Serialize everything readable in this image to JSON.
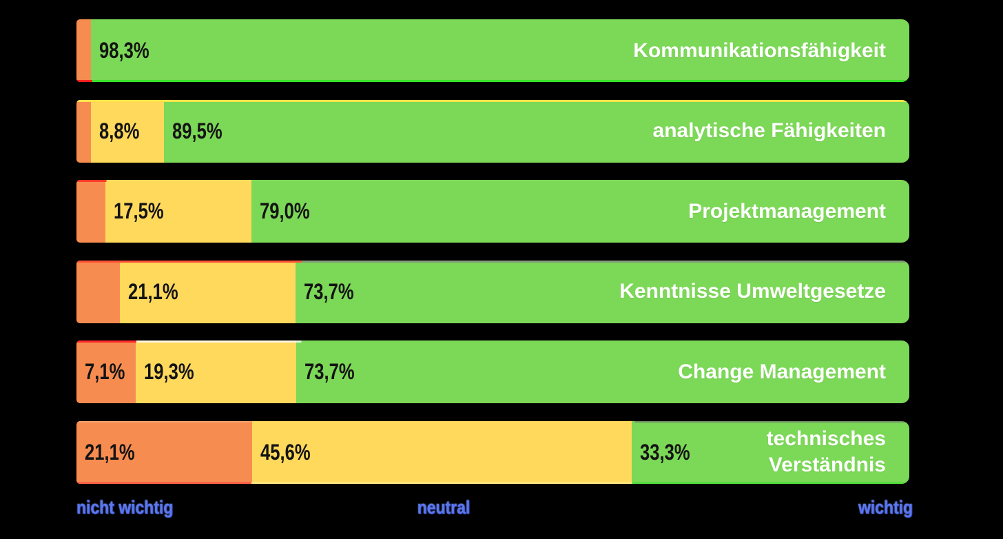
{
  "background_color": "#000000",
  "colors": {
    "nicht_wichtig": "#F78C50",
    "neutral": "#FFD95C",
    "wichtig": "#7CD857",
    "legend_text": "#5B78EC",
    "percent_text": "#141414",
    "category_text": "#FFFFFF",
    "accent_red": "#FF2020",
    "accent_neon_green": "#38E32A",
    "accent_yellow": "#FFE14B"
  },
  "legend": {
    "left": "nicht wichtig",
    "center": "neutral",
    "right": "wichtig"
  },
  "rows": [
    {
      "category": "Kommunikationsfähigkeit",
      "segments": [
        {
          "value": 1.7,
          "label": ""
        },
        {
          "value": 0,
          "label": ""
        },
        {
          "value": 98.3,
          "label": "98,3%"
        }
      ]
    },
    {
      "category": "analytische Fähigkeiten",
      "segments": [
        {
          "value": 1.7,
          "label": ""
        },
        {
          "value": 8.8,
          "label": "8,8%"
        },
        {
          "value": 89.5,
          "label": "89,5%"
        }
      ]
    },
    {
      "category": "Projektmanagement",
      "segments": [
        {
          "value": 3.5,
          "label": ""
        },
        {
          "value": 17.5,
          "label": "17,5%"
        },
        {
          "value": 79.0,
          "label": "79,0%"
        }
      ]
    },
    {
      "category": "Kenntnisse Umweltgesetze",
      "segments": [
        {
          "value": 5.2,
          "label": ""
        },
        {
          "value": 21.1,
          "label": "21,1%"
        },
        {
          "value": 73.7,
          "label": "73,7%"
        }
      ]
    },
    {
      "category": "Change Management",
      "segments": [
        {
          "value": 7.1,
          "label": "7,1%"
        },
        {
          "value": 19.3,
          "label": "19,3%"
        },
        {
          "value": 73.7,
          "label": "73,7%"
        }
      ]
    },
    {
      "category": "technisches\nVerständnis",
      "segments": [
        {
          "value": 21.1,
          "label": "21,1%"
        },
        {
          "value": 45.6,
          "label": "45,6%"
        },
        {
          "value": 33.3,
          "label": "33,3%"
        }
      ]
    }
  ],
  "chart_data": {
    "type": "bar",
    "subtype": "horizontal_stacked_100_percent",
    "categories": [
      "Kommunikationsfähigkeit",
      "analytische Fähigkeiten",
      "Projektmanagement",
      "Kenntnisse Umweltgesetze",
      "Change Management",
      "technisches Verständnis"
    ],
    "series": [
      {
        "name": "nicht wichtig",
        "color": "#F78C50",
        "values": [
          1.7,
          1.7,
          3.5,
          5.2,
          7.1,
          21.1
        ]
      },
      {
        "name": "neutral",
        "color": "#FFD95C",
        "values": [
          0,
          8.8,
          17.5,
          21.1,
          19.3,
          45.6
        ]
      },
      {
        "name": "wichtig",
        "color": "#7CD857",
        "values": [
          98.3,
          89.5,
          79.0,
          73.7,
          73.7,
          33.3
        ]
      }
    ],
    "shown_value_labels": [
      [
        "",
        "",
        "98,3%"
      ],
      [
        "",
        "8,8%",
        "89,5%"
      ],
      [
        "",
        "17,5%",
        "79,0%"
      ],
      [
        "",
        "21,1%",
        "73,7%"
      ],
      [
        "7,1%",
        "19,3%",
        "73,7%"
      ],
      [
        "21,1%",
        "45,6%",
        "33,3%"
      ]
    ],
    "xlim": [
      0,
      100
    ],
    "value_label_format": "one decimal, German comma, percent",
    "legend_position": "bottom",
    "grid": false
  }
}
